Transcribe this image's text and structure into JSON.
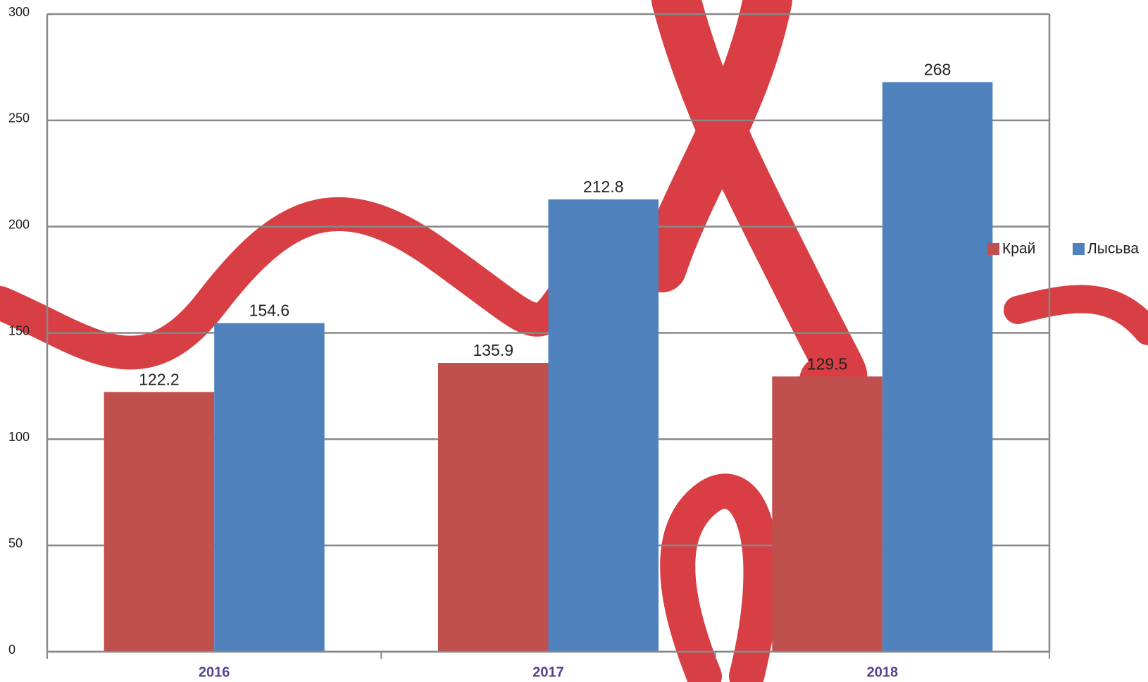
{
  "chart_data": {
    "type": "bar",
    "categories": [
      "2016",
      "2017",
      "2018"
    ],
    "series": [
      {
        "name": "Край",
        "color": "#c0504d",
        "values": [
          122.2,
          135.9,
          129.5
        ]
      },
      {
        "name": "Лысьва",
        "color": "#4f81bd",
        "values": [
          154.6,
          212.8,
          268
        ]
      }
    ],
    "ylim": [
      0,
      300
    ],
    "yticks": [
      0,
      50,
      100,
      150,
      200,
      250,
      300
    ],
    "grid": true,
    "legend": "right"
  }
}
